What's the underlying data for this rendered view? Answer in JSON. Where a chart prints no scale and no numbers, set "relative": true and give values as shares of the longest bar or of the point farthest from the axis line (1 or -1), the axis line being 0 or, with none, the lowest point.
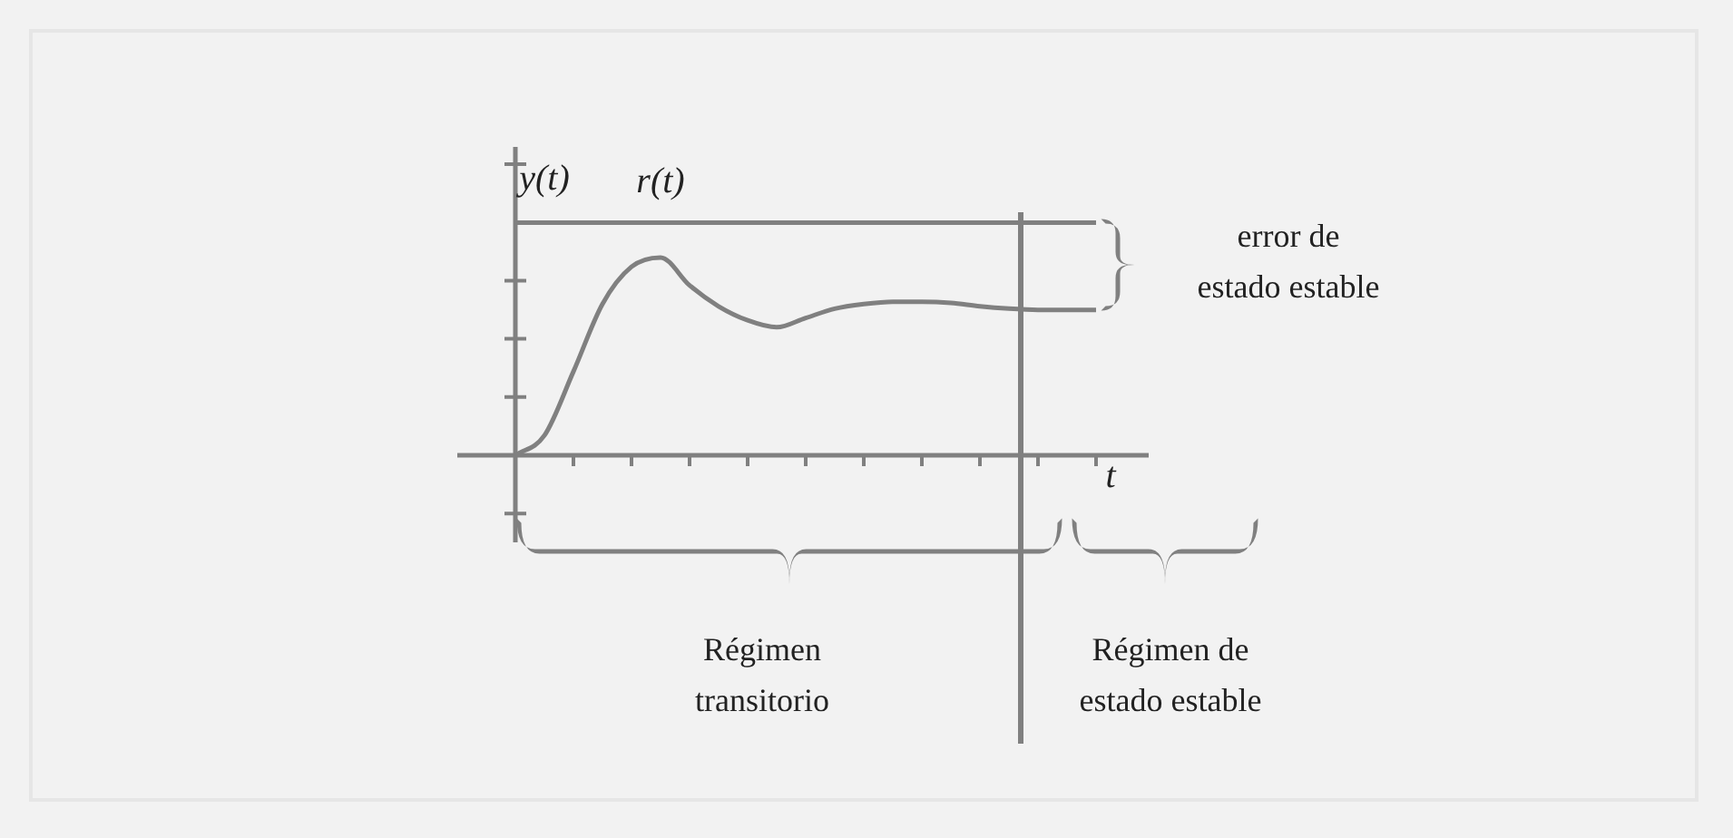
{
  "chart_data": {
    "type": "line",
    "xlabel": "t",
    "ylabel": "y(t)",
    "relative": true,
    "legend": false,
    "marker": "none",
    "line_style": "solid",
    "categories": [
      null,
      null,
      null,
      null,
      null,
      null,
      null,
      null,
      null,
      null,
      null,
      null,
      null,
      null,
      null,
      null,
      null,
      null,
      null,
      null,
      null
    ],
    "series": [
      {
        "name": "r(t)",
        "color": "#808080",
        "values": [
          1,
          1,
          1,
          1,
          1,
          1,
          1,
          1,
          1,
          1,
          1,
          1,
          1,
          1,
          1,
          1,
          1,
          1,
          1,
          1,
          1
        ]
      },
      {
        "color": "#808080",
        "values": [
          0,
          0.085,
          0.36,
          0.65,
          0.81,
          0.85,
          0.73,
          0.64,
          0.58,
          0.55,
          0.59,
          0.63,
          0.65,
          0.66,
          0.66,
          0.655,
          0.64,
          0.63,
          0.625,
          0.625,
          0.625
        ]
      }
    ],
    "annotations": [
      "error de\nestado estable",
      "Régimen\ntransitorio",
      "Régimen de\nestado estable"
    ]
  }
}
